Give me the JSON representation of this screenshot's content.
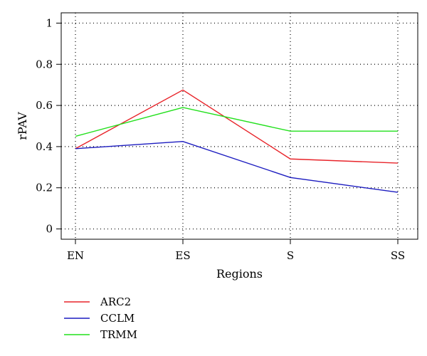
{
  "chart_data": {
    "type": "line",
    "title": "",
    "xlabel": "Regions",
    "ylabel": "rPAV",
    "categories": [
      "EN",
      "ES",
      "S",
      "SS"
    ],
    "ylim": [
      -0.05,
      1.05
    ],
    "yticks": [
      0,
      0.2,
      0.4,
      0.6,
      0.8,
      1
    ],
    "ytick_labels": [
      "0",
      "0.2",
      "0.4",
      "0.6",
      "0.8",
      "1"
    ],
    "grid": "dotted",
    "legend_position": "bottom-left",
    "series": [
      {
        "name": "ARC2",
        "color": "#e8242a",
        "values": [
          0.39,
          0.675,
          0.34,
          0.32
        ]
      },
      {
        "name": "CCLM",
        "color": "#1c1cc0",
        "values": [
          0.39,
          0.425,
          0.25,
          0.178
        ]
      },
      {
        "name": "TRMM",
        "color": "#22e01c",
        "values": [
          0.45,
          0.59,
          0.475,
          0.475
        ]
      }
    ]
  }
}
